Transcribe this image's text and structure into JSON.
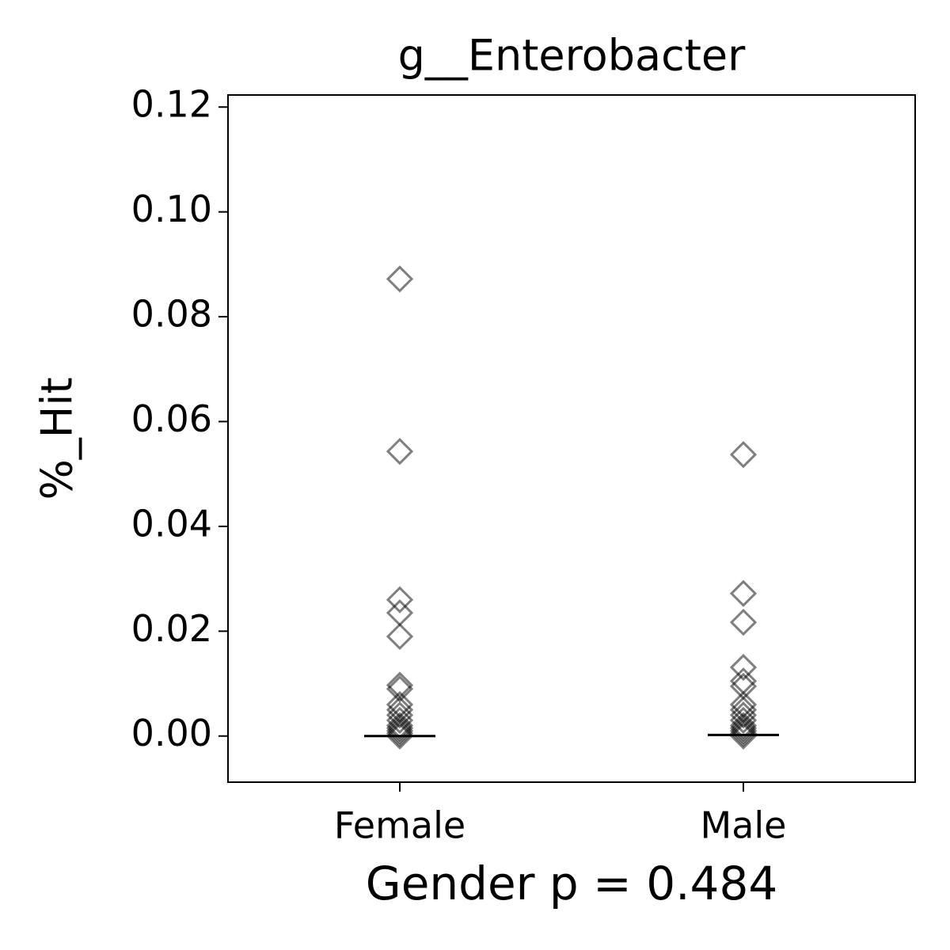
{
  "chart_data": {
    "type": "strip",
    "title": "g__Enterobacter",
    "x_label": "Gender p = 0.484",
    "y_label": "%_Hit",
    "categories": [
      "Female",
      "Male"
    ],
    "points": [
      [
        0.0872,
        0.0543,
        0.026,
        0.0235,
        0.019,
        0.0097,
        0.009,
        0.006,
        0.005,
        0.004,
        0.003,
        0.002,
        0.0015,
        0.001,
        0.0005,
        0.0
      ],
      [
        0.0537,
        0.0272,
        0.0217,
        0.0131,
        0.0105,
        0.0095,
        0.006,
        0.005,
        0.004,
        0.003,
        0.002,
        0.0015,
        0.001,
        0.0005,
        0.0
      ]
    ],
    "medians": [
      0.0,
      0.0002
    ],
    "color": "#000000",
    "ylim": [
      -0.0088,
      0.1223
    ],
    "yticks": [
      {
        "value": 0,
        "label": "0.00"
      },
      {
        "value": 0.02,
        "label": "0.02"
      },
      {
        "value": 0.04,
        "label": "0.04"
      },
      {
        "value": 0.06,
        "label": "0.06"
      },
      {
        "value": 0.08,
        "label": "0.08"
      },
      {
        "value": 0.1,
        "label": "0.10"
      },
      {
        "value": 0.12,
        "label": "0.12"
      }
    ],
    "grid": false
  }
}
